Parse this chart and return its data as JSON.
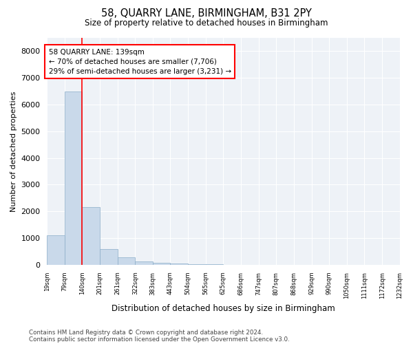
{
  "title": "58, QUARRY LANE, BIRMINGHAM, B31 2PY",
  "subtitle": "Size of property relative to detached houses in Birmingham",
  "xlabel": "Distribution of detached houses by size in Birmingham",
  "ylabel": "Number of detached properties",
  "bar_color": "#c9d9ea",
  "bar_edge_color": "#8aacc8",
  "vline_x": 140,
  "vline_color": "red",
  "annotation_line1": "58 QUARRY LANE: 139sqm",
  "annotation_line2": "← 70% of detached houses are smaller (7,706)",
  "annotation_line3": "29% of semi-detached houses are larger (3,231) →",
  "annotation_box_color": "white",
  "annotation_box_edge_color": "red",
  "bin_edges": [
    19,
    79,
    140,
    201,
    261,
    322,
    383,
    443,
    504,
    565,
    625,
    686,
    747,
    807,
    868,
    929,
    990,
    1050,
    1111,
    1172,
    1232
  ],
  "bar_heights": [
    1100,
    6500,
    2150,
    580,
    280,
    125,
    70,
    40,
    25,
    12,
    5,
    0,
    0,
    0,
    0,
    0,
    0,
    0,
    0,
    0
  ],
  "ylim": [
    0,
    8500
  ],
  "yticks": [
    0,
    1000,
    2000,
    3000,
    4000,
    5000,
    6000,
    7000,
    8000
  ],
  "footnote1": "Contains HM Land Registry data © Crown copyright and database right 2024.",
  "footnote2": "Contains public sector information licensed under the Open Government Licence v3.0.",
  "plot_bg_color": "#eef2f7"
}
